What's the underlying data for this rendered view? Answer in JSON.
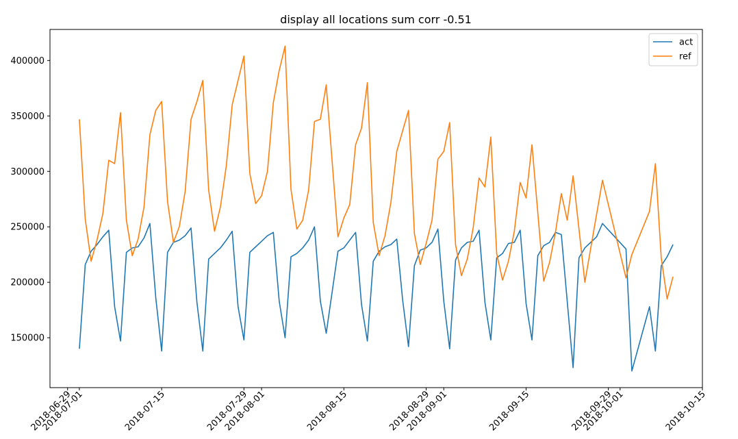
{
  "chart_data": {
    "type": "line",
    "title": "display all locations sum corr -0.51",
    "xlabel": "",
    "ylabel": "",
    "xlim": [
      "2018-06-26",
      "2018-10-15"
    ],
    "ylim": [
      105000,
      428000
    ],
    "y_ticks": [
      {
        "value": 150000,
        "label": "150000"
      },
      {
        "value": 200000,
        "label": "200000"
      },
      {
        "value": 250000,
        "label": "250000"
      },
      {
        "value": 300000,
        "label": "300000"
      },
      {
        "value": 350000,
        "label": "350000"
      },
      {
        "value": 400000,
        "label": "400000"
      }
    ],
    "x_ticks": [
      {
        "date": "2018-06-29",
        "label": "2018-06-29"
      },
      {
        "date": "2018-07-01",
        "label": "2018-07-01"
      },
      {
        "date": "2018-07-15",
        "label": "2018-07-15"
      },
      {
        "date": "2018-07-29",
        "label": "2018-07-29"
      },
      {
        "date": "2018-08-01",
        "label": "2018-08-01"
      },
      {
        "date": "2018-08-15",
        "label": "2018-08-15"
      },
      {
        "date": "2018-08-29",
        "label": "2018-08-29"
      },
      {
        "date": "2018-09-01",
        "label": "2018-09-01"
      },
      {
        "date": "2018-09-15",
        "label": "2018-09-15"
      },
      {
        "date": "2018-09-29",
        "label": "2018-09-29"
      },
      {
        "date": "2018-10-01",
        "label": "2018-10-01"
      },
      {
        "date": "2018-10-15",
        "label": "2018-10-15"
      }
    ],
    "grid": false,
    "legend_position": "top-right",
    "series": [
      {
        "name": "act",
        "color": "#1f77b4",
        "points": [
          [
            "2018-07-01",
            140000
          ],
          [
            "2018-07-02",
            216000
          ],
          [
            "2018-07-03",
            228000
          ],
          [
            "2018-07-04",
            234000
          ],
          [
            "2018-07-05",
            241000
          ],
          [
            "2018-07-06",
            247000
          ],
          [
            "2018-07-07",
            178000
          ],
          [
            "2018-07-08",
            147000
          ],
          [
            "2018-07-09",
            227000
          ],
          [
            "2018-07-10",
            231000
          ],
          [
            "2018-07-11",
            232000
          ],
          [
            "2018-07-12",
            240000
          ],
          [
            "2018-07-13",
            253000
          ],
          [
            "2018-07-14",
            186000
          ],
          [
            "2018-07-15",
            138000
          ],
          [
            "2018-07-16",
            227000
          ],
          [
            "2018-07-17",
            236000
          ],
          [
            "2018-07-18",
            238000
          ],
          [
            "2018-07-19",
            242000
          ],
          [
            "2018-07-20",
            249000
          ],
          [
            "2018-07-21",
            182000
          ],
          [
            "2018-07-22",
            138000
          ],
          [
            "2018-07-23",
            221000
          ],
          [
            "2018-07-24",
            226000
          ],
          [
            "2018-07-25",
            231000
          ],
          [
            "2018-07-26",
            238000
          ],
          [
            "2018-07-27",
            246000
          ],
          [
            "2018-07-28",
            178000
          ],
          [
            "2018-07-29",
            148000
          ],
          [
            "2018-07-30",
            227000
          ],
          [
            "2018-07-31",
            232000
          ],
          [
            "2018-08-01",
            237000
          ],
          [
            "2018-08-02",
            242000
          ],
          [
            "2018-08-03",
            245000
          ],
          [
            "2018-08-04",
            183000
          ],
          [
            "2018-08-05",
            150000
          ],
          [
            "2018-08-06",
            223000
          ],
          [
            "2018-08-07",
            226000
          ],
          [
            "2018-08-08",
            231000
          ],
          [
            "2018-08-09",
            238000
          ],
          [
            "2018-08-10",
            250000
          ],
          [
            "2018-08-11",
            183000
          ],
          [
            "2018-08-12",
            154000
          ],
          [
            "2018-08-14",
            228000
          ],
          [
            "2018-08-15",
            231000
          ],
          [
            "2018-08-16",
            238000
          ],
          [
            "2018-08-17",
            245000
          ],
          [
            "2018-08-18",
            180000
          ],
          [
            "2018-08-19",
            147000
          ],
          [
            "2018-08-20",
            219000
          ],
          [
            "2018-08-21",
            228000
          ],
          [
            "2018-08-22",
            232000
          ],
          [
            "2018-08-23",
            234000
          ],
          [
            "2018-08-24",
            239000
          ],
          [
            "2018-08-25",
            184000
          ],
          [
            "2018-08-26",
            142000
          ],
          [
            "2018-08-27",
            215000
          ],
          [
            "2018-08-28",
            229000
          ],
          [
            "2018-08-29",
            231000
          ],
          [
            "2018-08-30",
            236000
          ],
          [
            "2018-08-31",
            248000
          ],
          [
            "2018-09-01",
            183000
          ],
          [
            "2018-09-02",
            140000
          ],
          [
            "2018-09-03",
            220000
          ],
          [
            "2018-09-04",
            231000
          ],
          [
            "2018-09-05",
            236000
          ],
          [
            "2018-09-06",
            237000
          ],
          [
            "2018-09-07",
            247000
          ],
          [
            "2018-09-08",
            182000
          ],
          [
            "2018-09-09",
            148000
          ],
          [
            "2018-09-10",
            222000
          ],
          [
            "2018-09-11",
            226000
          ],
          [
            "2018-09-12",
            235000
          ],
          [
            "2018-09-13",
            236000
          ],
          [
            "2018-09-14",
            247000
          ],
          [
            "2018-09-15",
            181000
          ],
          [
            "2018-09-16",
            148000
          ],
          [
            "2018-09-17",
            224000
          ],
          [
            "2018-09-18",
            233000
          ],
          [
            "2018-09-19",
            236000
          ],
          [
            "2018-09-20",
            245000
          ],
          [
            "2018-09-21",
            243000
          ],
          [
            "2018-09-23",
            123000
          ],
          [
            "2018-09-24",
            222000
          ],
          [
            "2018-09-25",
            231000
          ],
          [
            "2018-09-26",
            236000
          ],
          [
            "2018-09-27",
            241000
          ],
          [
            "2018-09-28",
            253000
          ],
          [
            "2018-10-02",
            230000
          ],
          [
            "2018-10-03",
            120000
          ],
          [
            "2018-10-06",
            178000
          ],
          [
            "2018-10-07",
            138000
          ],
          [
            "2018-10-08",
            215000
          ],
          [
            "2018-10-09",
            223000
          ],
          [
            "2018-10-10",
            234000
          ]
        ]
      },
      {
        "name": "ref",
        "color": "#ff7f0e",
        "points": [
          [
            "2018-07-01",
            347000
          ],
          [
            "2018-07-02",
            257000
          ],
          [
            "2018-07-03",
            219000
          ],
          [
            "2018-07-04",
            238000
          ],
          [
            "2018-07-05",
            262000
          ],
          [
            "2018-07-06",
            310000
          ],
          [
            "2018-07-07",
            307000
          ],
          [
            "2018-07-08",
            353000
          ],
          [
            "2018-07-09",
            256000
          ],
          [
            "2018-07-10",
            224000
          ],
          [
            "2018-07-11",
            239000
          ],
          [
            "2018-07-12",
            268000
          ],
          [
            "2018-07-13",
            333000
          ],
          [
            "2018-07-14",
            355000
          ],
          [
            "2018-07-15",
            363000
          ],
          [
            "2018-07-16",
            273000
          ],
          [
            "2018-07-17",
            236000
          ],
          [
            "2018-07-18",
            250000
          ],
          [
            "2018-07-19",
            282000
          ],
          [
            "2018-07-20",
            347000
          ],
          [
            "2018-07-21",
            363000
          ],
          [
            "2018-07-22",
            382000
          ],
          [
            "2018-07-23",
            283000
          ],
          [
            "2018-07-24",
            246000
          ],
          [
            "2018-07-25",
            268000
          ],
          [
            "2018-07-26",
            305000
          ],
          [
            "2018-07-27",
            360000
          ],
          [
            "2018-07-28",
            382000
          ],
          [
            "2018-07-29",
            404000
          ],
          [
            "2018-07-30",
            298000
          ],
          [
            "2018-07-31",
            271000
          ],
          [
            "2018-08-01",
            278000
          ],
          [
            "2018-08-02",
            300000
          ],
          [
            "2018-08-03",
            362000
          ],
          [
            "2018-08-04",
            391000
          ],
          [
            "2018-08-05",
            413000
          ],
          [
            "2018-08-06",
            284000
          ],
          [
            "2018-08-07",
            248000
          ],
          [
            "2018-08-08",
            256000
          ],
          [
            "2018-08-09",
            283000
          ],
          [
            "2018-08-10",
            345000
          ],
          [
            "2018-08-11",
            347000
          ],
          [
            "2018-08-12",
            378000
          ],
          [
            "2018-08-14",
            241000
          ],
          [
            "2018-08-15",
            258000
          ],
          [
            "2018-08-16",
            270000
          ],
          [
            "2018-08-17",
            324000
          ],
          [
            "2018-08-18",
            339000
          ],
          [
            "2018-08-19",
            380000
          ],
          [
            "2018-08-20",
            254000
          ],
          [
            "2018-08-21",
            224000
          ],
          [
            "2018-08-22",
            242000
          ],
          [
            "2018-08-23",
            272000
          ],
          [
            "2018-08-24",
            318000
          ],
          [
            "2018-08-26",
            355000
          ],
          [
            "2018-08-27",
            244000
          ],
          [
            "2018-08-28",
            216000
          ],
          [
            "2018-08-29",
            235000
          ],
          [
            "2018-08-30",
            256000
          ],
          [
            "2018-08-31",
            311000
          ],
          [
            "2018-09-01",
            318000
          ],
          [
            "2018-09-02",
            344000
          ],
          [
            "2018-09-03",
            234000
          ],
          [
            "2018-09-04",
            206000
          ],
          [
            "2018-09-05",
            221000
          ],
          [
            "2018-09-06",
            249000
          ],
          [
            "2018-09-07",
            294000
          ],
          [
            "2018-09-08",
            286000
          ],
          [
            "2018-09-09",
            331000
          ],
          [
            "2018-09-10",
            226000
          ],
          [
            "2018-09-11",
            202000
          ],
          [
            "2018-09-12",
            219000
          ],
          [
            "2018-09-13",
            246000
          ],
          [
            "2018-09-14",
            290000
          ],
          [
            "2018-09-15",
            276000
          ],
          [
            "2018-09-16",
            324000
          ],
          [
            "2018-09-18",
            201000
          ],
          [
            "2018-09-19",
            218000
          ],
          [
            "2018-09-20",
            245000
          ],
          [
            "2018-09-21",
            280000
          ],
          [
            "2018-09-22",
            256000
          ],
          [
            "2018-09-23",
            296000
          ],
          [
            "2018-09-25",
            200000
          ],
          [
            "2018-09-28",
            292000
          ],
          [
            "2018-10-02",
            204000
          ],
          [
            "2018-10-03",
            225000
          ],
          [
            "2018-10-06",
            264000
          ],
          [
            "2018-10-07",
            307000
          ],
          [
            "2018-10-08",
            222000
          ],
          [
            "2018-10-09",
            185000
          ],
          [
            "2018-10-10",
            205000
          ]
        ]
      }
    ]
  }
}
